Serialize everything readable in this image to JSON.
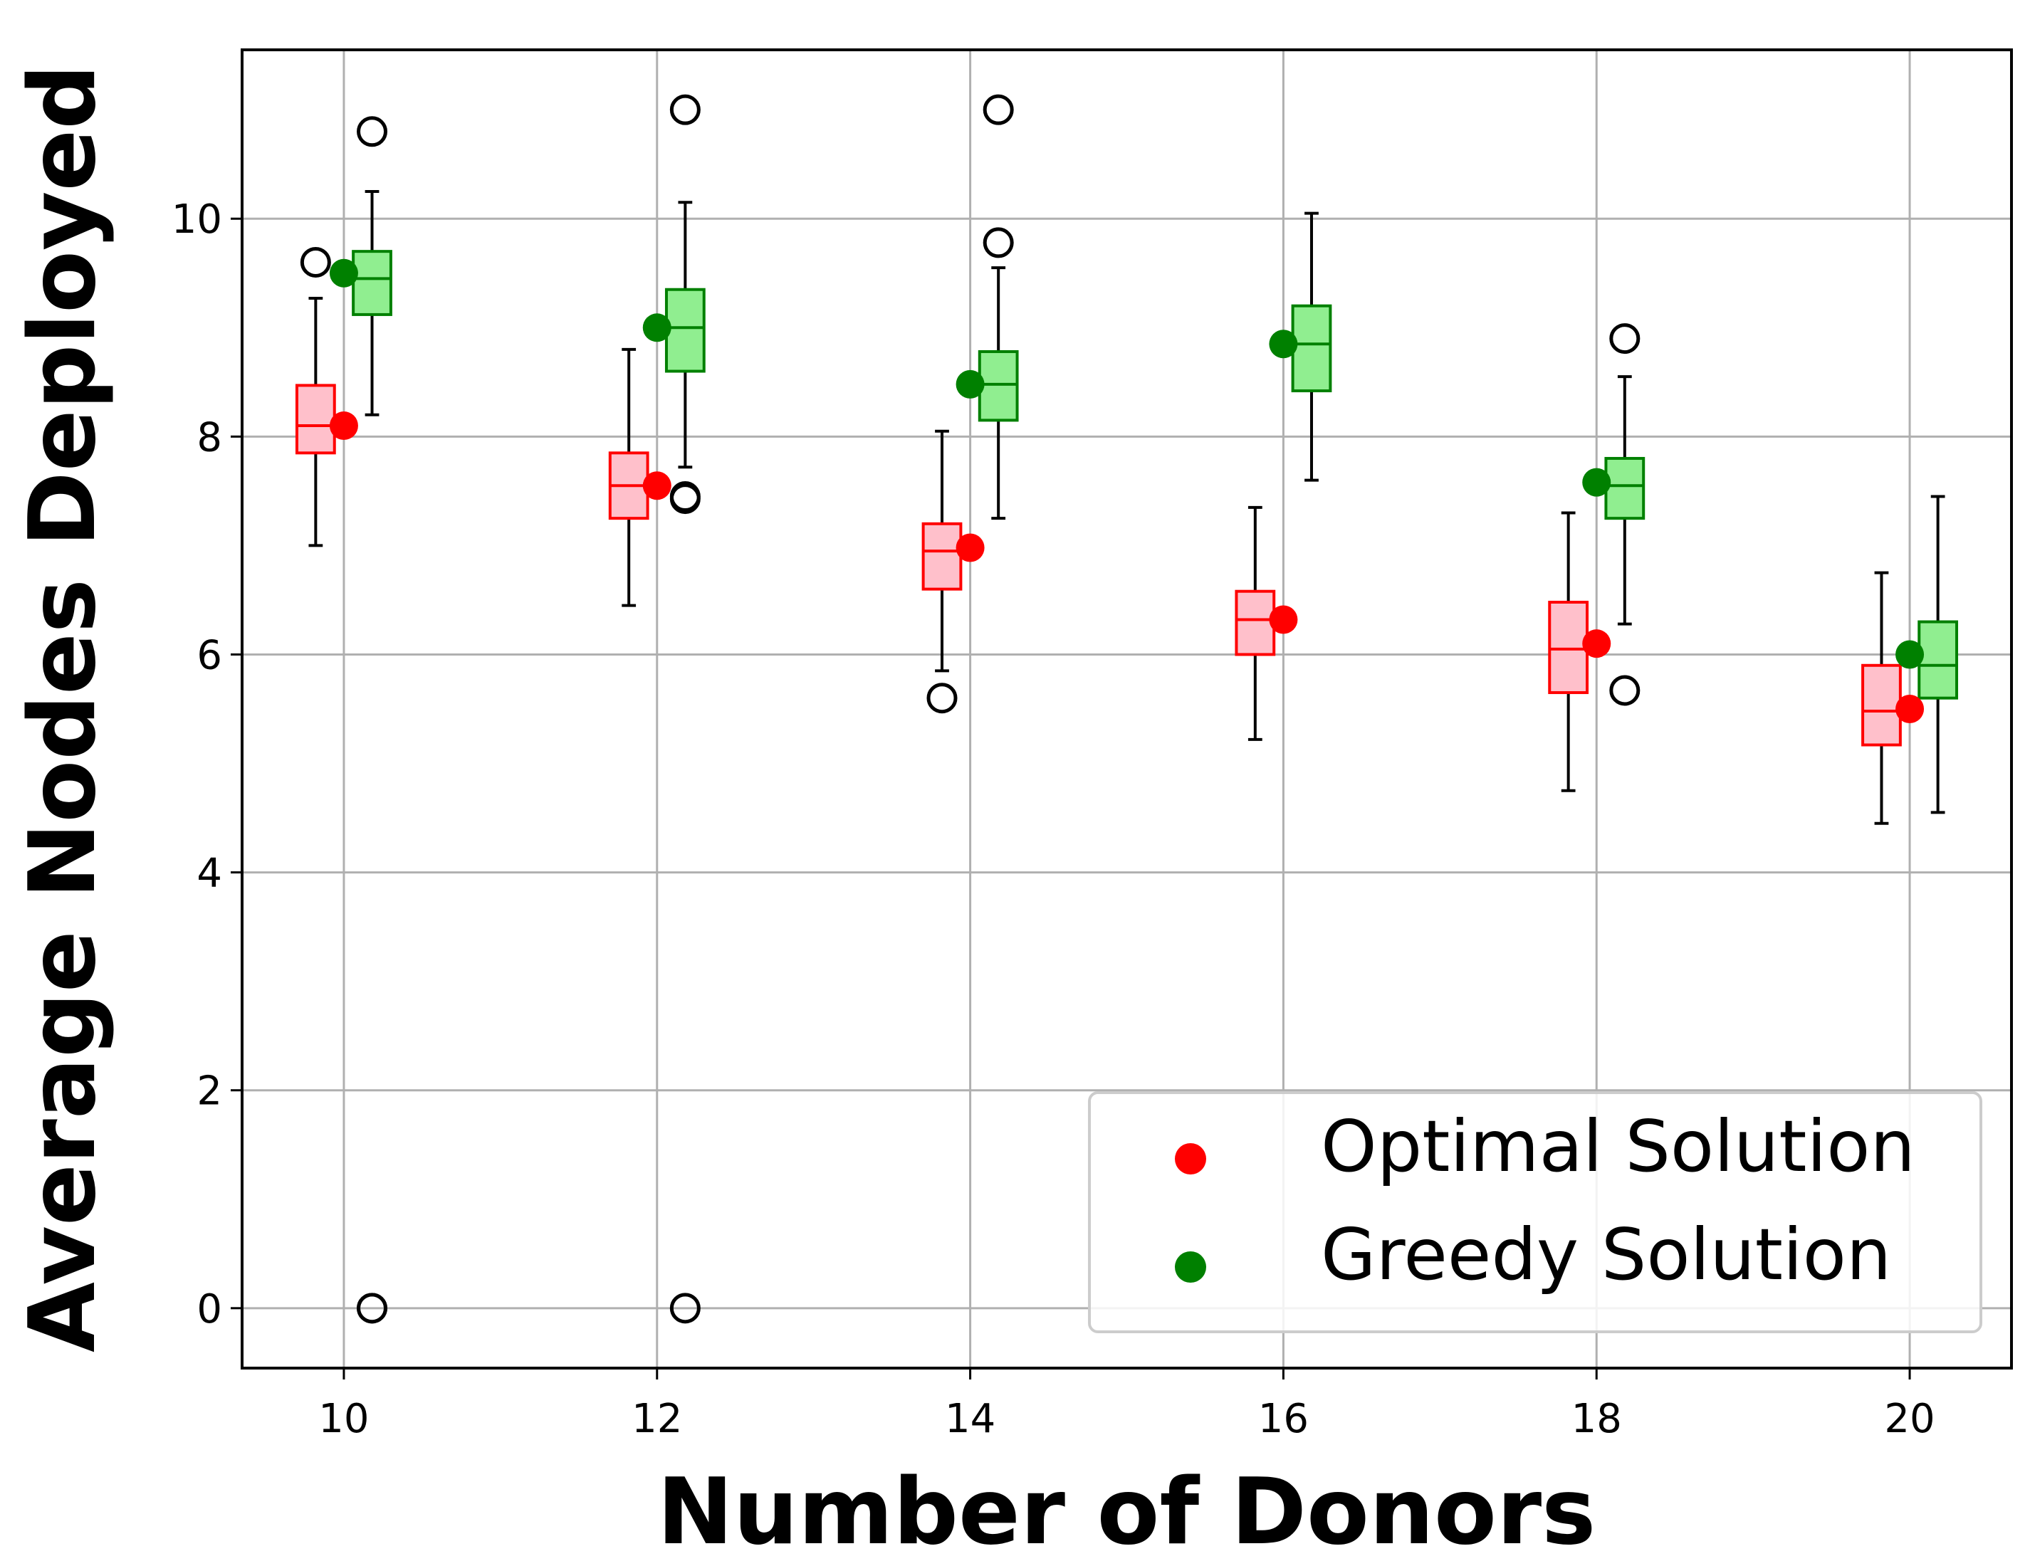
{
  "chart_data": {
    "type": "box",
    "xlabel": "Number of Donors",
    "ylabel": "Average Nodes Deployed",
    "x_ticks": [
      "10",
      "12",
      "14",
      "16",
      "18",
      "20"
    ],
    "y_ticks": [
      "0",
      "2",
      "4",
      "6",
      "8",
      "10"
    ],
    "xlim": [
      9.35,
      20.65
    ],
    "ylim": [
      -0.55,
      11.55
    ],
    "grid": true,
    "legend_position": "lower-right",
    "series": [
      {
        "name": "Optimal Solution",
        "marker_color": "#ff0000",
        "box_face": "#ffc0cb",
        "box_edge": "#ff0000",
        "points": [
          {
            "x": 10,
            "mean": 8.1,
            "whisker_low": 7.0,
            "q1": 7.85,
            "median": 8.1,
            "q3": 8.47,
            "whisker_high": 9.27,
            "outliers": [
              9.6
            ]
          },
          {
            "x": 12,
            "mean": 7.55,
            "whisker_low": 6.45,
            "q1": 7.25,
            "median": 7.55,
            "q3": 7.85,
            "whisker_high": 8.8,
            "outliers": []
          },
          {
            "x": 14,
            "mean": 6.98,
            "whisker_low": 5.85,
            "q1": 6.6,
            "median": 6.95,
            "q3": 7.2,
            "whisker_high": 8.05,
            "outliers": [
              5.6
            ]
          },
          {
            "x": 16,
            "mean": 6.32,
            "whisker_low": 5.22,
            "q1": 6.0,
            "median": 6.32,
            "q3": 6.58,
            "whisker_high": 7.35,
            "outliers": []
          },
          {
            "x": 18,
            "mean": 6.1,
            "whisker_low": 4.75,
            "q1": 5.65,
            "median": 6.05,
            "q3": 6.48,
            "whisker_high": 7.3,
            "outliers": []
          },
          {
            "x": 20,
            "mean": 5.5,
            "whisker_low": 4.45,
            "q1": 5.17,
            "median": 5.48,
            "q3": 5.9,
            "whisker_high": 6.75,
            "outliers": []
          }
        ]
      },
      {
        "name": "Greedy Solution",
        "marker_color": "#008000",
        "box_face": "#90ee90",
        "box_edge": "#008000",
        "points": [
          {
            "x": 10,
            "mean": 9.5,
            "whisker_low": 8.2,
            "q1": 9.12,
            "median": 9.45,
            "q3": 9.7,
            "whisker_high": 10.25,
            "outliers": [
              10.8,
              0,
              0
            ]
          },
          {
            "x": 12,
            "mean": 9.0,
            "whisker_low": 7.72,
            "q1": 8.6,
            "median": 9.0,
            "q3": 9.35,
            "whisker_high": 10.15,
            "outliers": [
              11.0,
              7.45,
              7.43,
              0
            ]
          },
          {
            "x": 14,
            "mean": 8.48,
            "whisker_low": 7.25,
            "q1": 8.15,
            "median": 8.48,
            "q3": 8.78,
            "whisker_high": 9.55,
            "outliers": [
              11.0,
              9.78
            ]
          },
          {
            "x": 16,
            "mean": 8.85,
            "whisker_low": 7.6,
            "q1": 8.42,
            "median": 8.85,
            "q3": 9.2,
            "whisker_high": 10.05,
            "outliers": []
          },
          {
            "x": 18,
            "mean": 7.58,
            "whisker_low": 6.28,
            "q1": 7.25,
            "median": 7.55,
            "q3": 7.8,
            "whisker_high": 8.55,
            "outliers": [
              8.9,
              5.67
            ]
          },
          {
            "x": 20,
            "mean": 6.0,
            "whisker_low": 4.55,
            "q1": 5.6,
            "median": 5.9,
            "q3": 6.3,
            "whisker_high": 7.45,
            "outliers": []
          }
        ]
      }
    ]
  }
}
